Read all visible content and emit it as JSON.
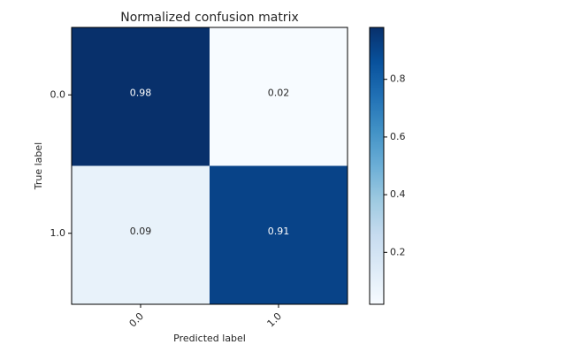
{
  "chart_data": {
    "type": "heatmap",
    "title": "Normalized confusion matrix",
    "xlabel": "Predicted label",
    "ylabel": "True label",
    "x_categories": [
      "0.0",
      "1.0"
    ],
    "y_categories": [
      "0.0",
      "1.0"
    ],
    "values": [
      [
        0.98,
        0.02
      ],
      [
        0.09,
        0.91
      ]
    ],
    "value_labels": [
      [
        "0.98",
        "0.02"
      ],
      [
        "0.09",
        "0.91"
      ]
    ],
    "colormap": "Blues",
    "colorbar": {
      "min": 0.02,
      "max": 0.98,
      "ticks": [
        0.2,
        0.4,
        0.6,
        0.8
      ],
      "tick_labels": [
        "0.2",
        "0.4",
        "0.6",
        "0.8"
      ]
    },
    "grid": false
  },
  "colors": {
    "blues_low": "#f7fbff",
    "blues_high": "#08306b",
    "text_dark": "#262626",
    "text_light": "#ffffff"
  }
}
